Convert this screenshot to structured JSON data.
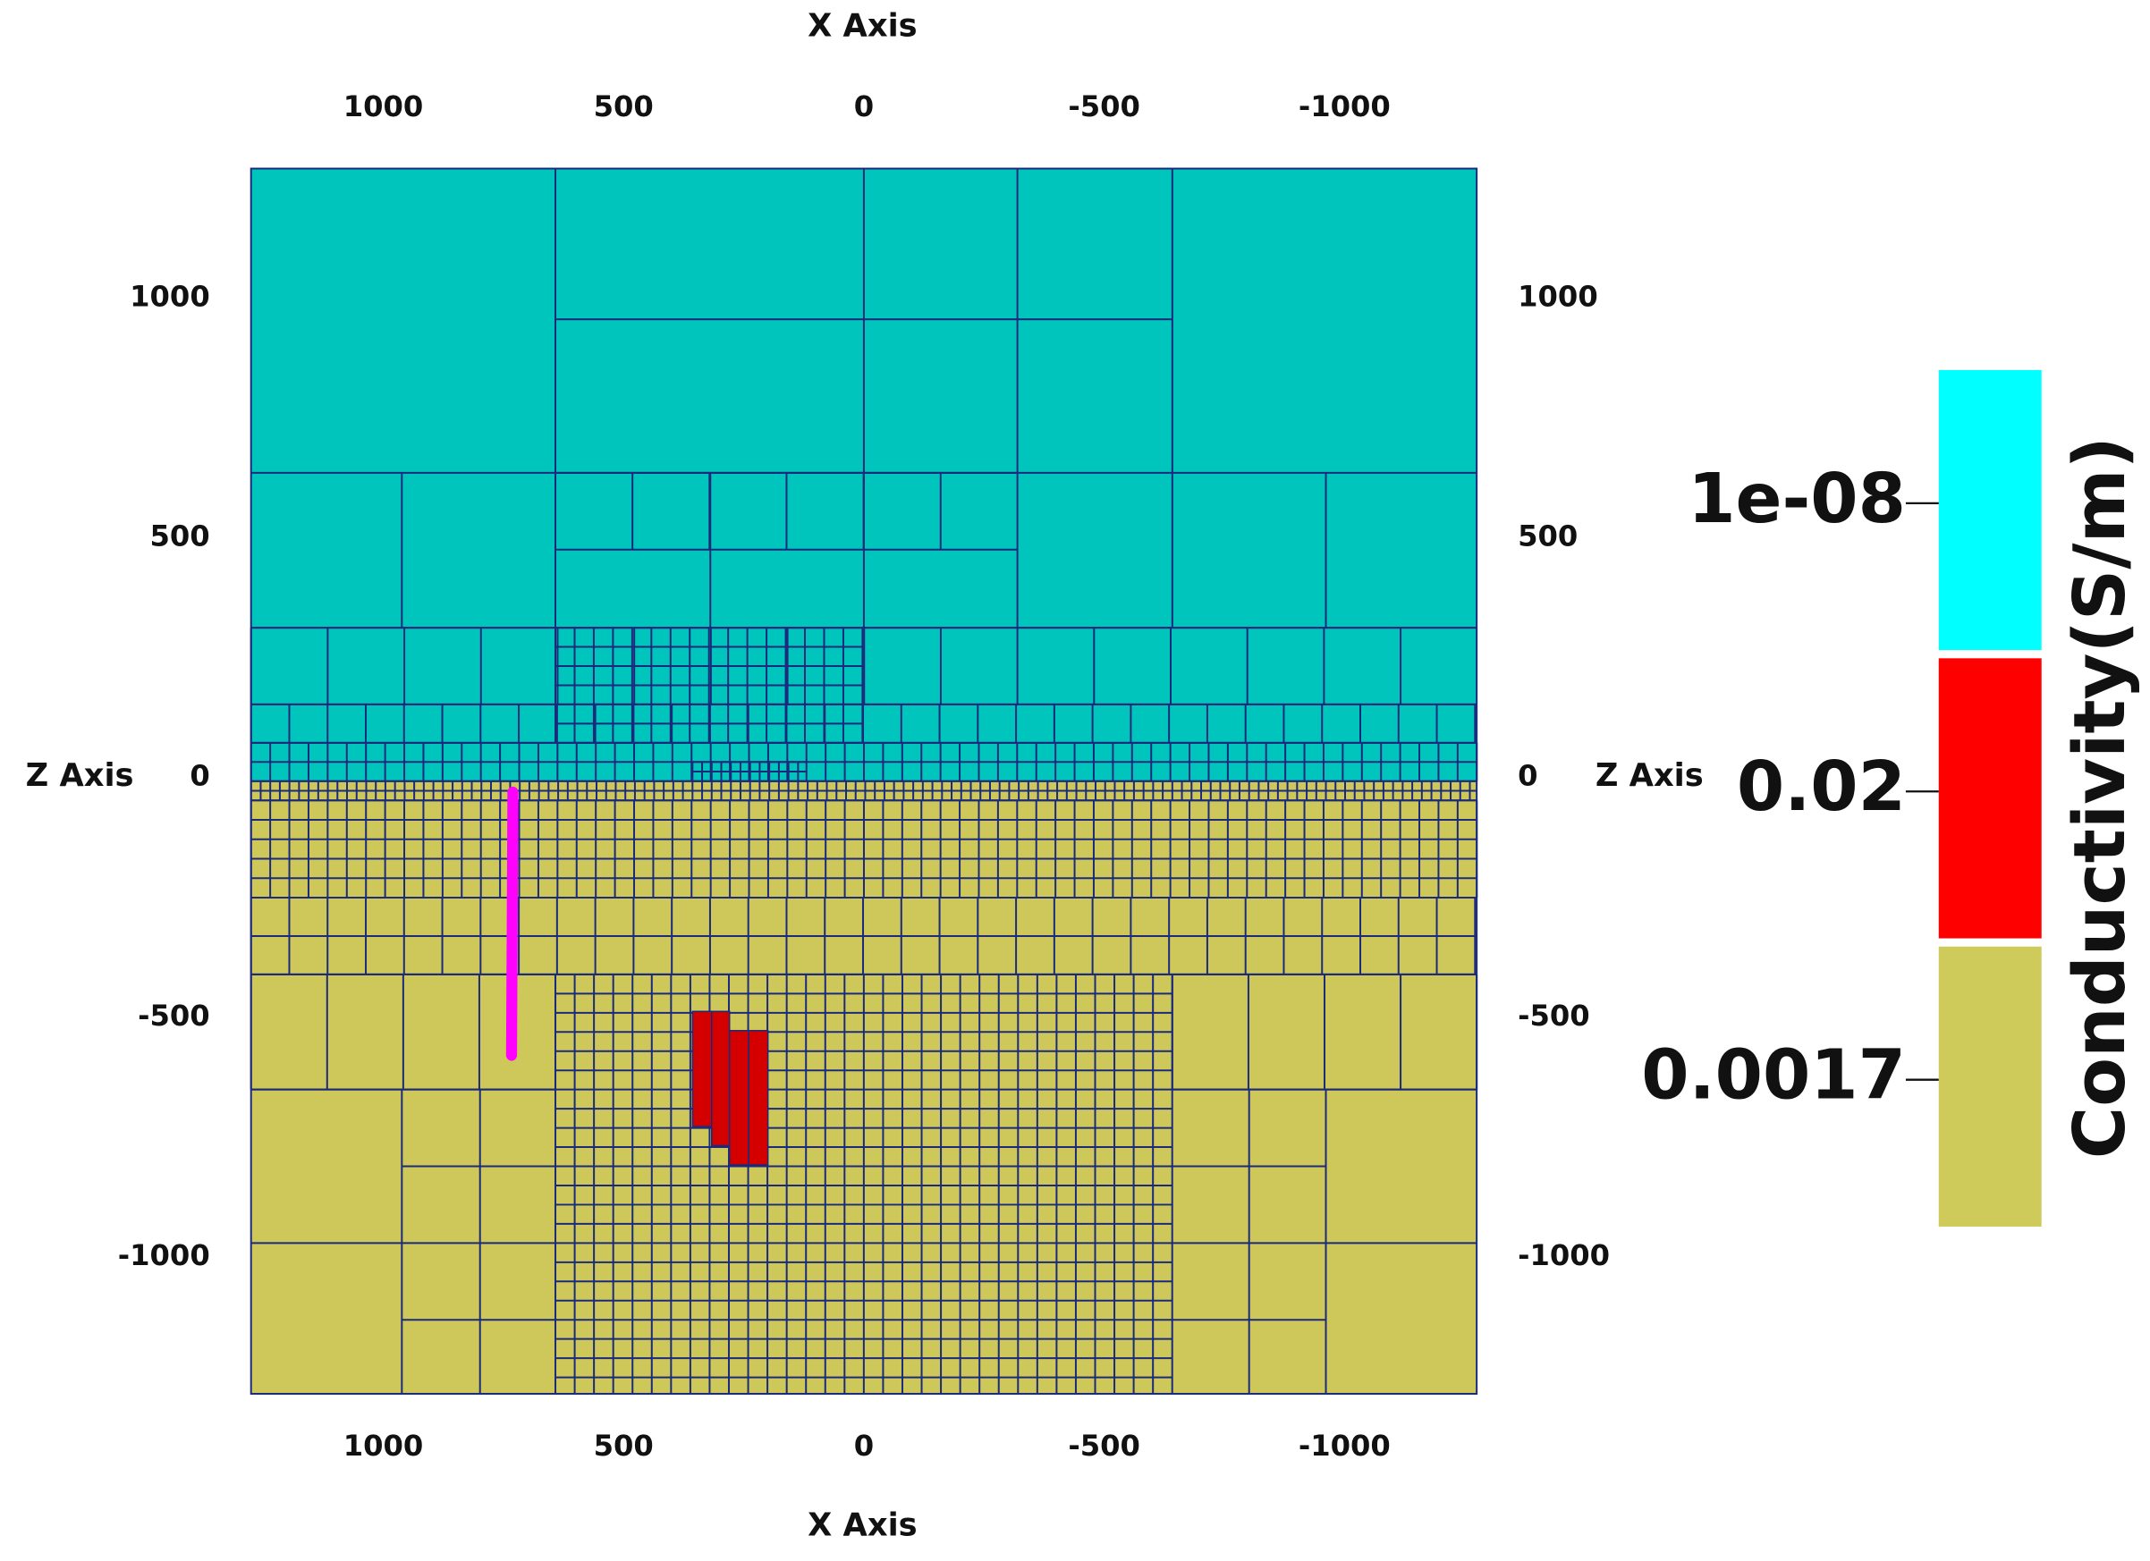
{
  "chart_data": {
    "type": "mesh",
    "x_title": "X Axis",
    "y_title": "Z Axis",
    "xlim": [
      1275,
      -1275
    ],
    "xticks": [
      1000,
      500,
      0,
      -500,
      -1000
    ],
    "ylim": [
      -1285,
      1270
    ],
    "yticks": [
      1000,
      500,
      0,
      -500,
      -1000
    ],
    "legend": {
      "title": "Conductivity(S/m)",
      "categories": [
        "1e-08",
        "0.02",
        "0.0017"
      ],
      "colors": [
        "#00ffff",
        "#ff0000",
        "#cfcb5a"
      ]
    }
  }
}
